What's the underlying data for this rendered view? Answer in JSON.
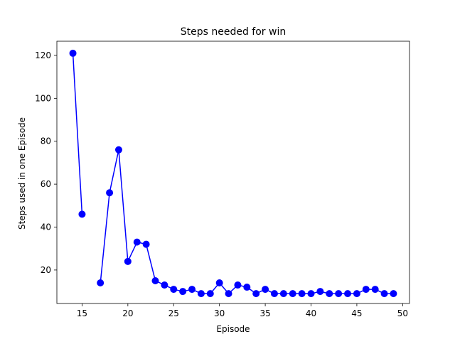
{
  "chart_data": {
    "type": "line",
    "title": "Steps needed for win",
    "xlabel": "Episode",
    "ylabel": "Steps used in one Episode",
    "xlim": [
      12.25,
      50.75
    ],
    "ylim": [
      4.4,
      126.6
    ],
    "xticks": [
      15,
      20,
      25,
      30,
      35,
      40,
      45,
      50
    ],
    "yticks": [
      20,
      40,
      60,
      80,
      100,
      120
    ],
    "grid": false,
    "legend": "none",
    "series": [
      {
        "color": "#0000ff",
        "marker": "circle",
        "points": [
          [
            14,
            121
          ],
          [
            15,
            46
          ],
          [
            16,
            null
          ],
          [
            17,
            14
          ],
          [
            18,
            56
          ],
          [
            19,
            76
          ],
          [
            20,
            24
          ],
          [
            21,
            33
          ],
          [
            22,
            32
          ],
          [
            23,
            15
          ],
          [
            24,
            13
          ],
          [
            25,
            11
          ],
          [
            26,
            10
          ],
          [
            27,
            11
          ],
          [
            28,
            9
          ],
          [
            29,
            9
          ],
          [
            30,
            14
          ],
          [
            31,
            9
          ],
          [
            32,
            13
          ],
          [
            33,
            12
          ],
          [
            34,
            9
          ],
          [
            35,
            11
          ],
          [
            36,
            9
          ],
          [
            37,
            9
          ],
          [
            38,
            9
          ],
          [
            39,
            9
          ],
          [
            40,
            9
          ],
          [
            41,
            10
          ],
          [
            42,
            9
          ],
          [
            43,
            9
          ],
          [
            44,
            9
          ],
          [
            45,
            9
          ],
          [
            46,
            11
          ],
          [
            47,
            11
          ],
          [
            48,
            9
          ],
          [
            49,
            9
          ]
        ]
      }
    ]
  }
}
